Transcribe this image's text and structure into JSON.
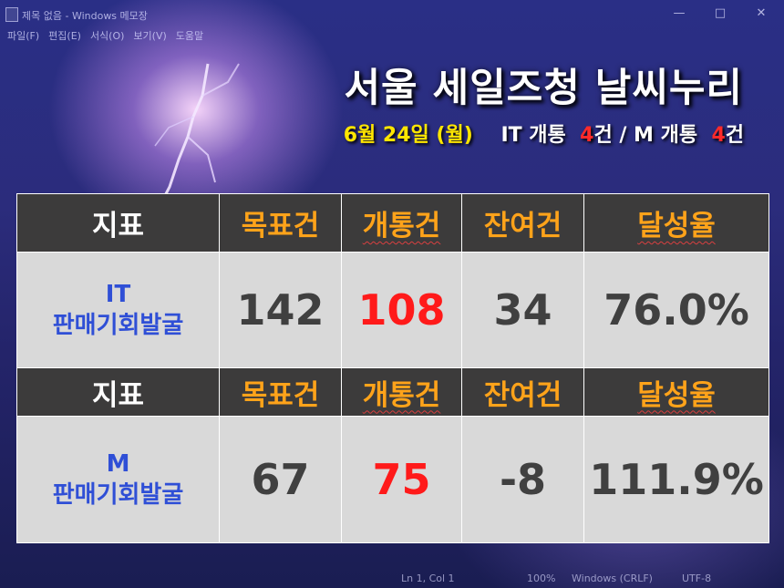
{
  "window": {
    "title": "제목 없음 - Windows 메모장",
    "menu": [
      "파일(F)",
      "편집(E)",
      "서식(O)",
      "보기(V)",
      "도움말"
    ]
  },
  "headline": "서울 세일즈청 날씨누리",
  "subheader": {
    "date": "6월 24일 (월)",
    "it_label": "IT 개통",
    "it_count": "4",
    "separator": "건 / M 개통",
    "m_count": "4",
    "suffix": "건"
  },
  "table": {
    "columns": [
      "지표",
      "목표건",
      "개통건",
      "잔여건",
      "달성율"
    ],
    "rows": [
      {
        "name_line1": "IT",
        "name_line2": "판매기회발굴",
        "target": "142",
        "opened": "108",
        "remaining": "34",
        "rate": "76.0%"
      },
      {
        "name_line1": "M",
        "name_line2": "판매기회발굴",
        "target": "67",
        "opened": "75",
        "remaining": "-8",
        "rate": "111.9%"
      }
    ]
  },
  "statusbar": {
    "position": "Ln 1, Col 1",
    "zoom": "100%",
    "line_ending": "Windows (CRLF)",
    "encoding": "UTF-8"
  },
  "colors": {
    "header_bg": "#3c3b3b",
    "header_accent": "#ffa31a",
    "cell_bg": "#d9d9d9",
    "highlight_red": "#ff1a1a",
    "metric_blue": "#2f4fd6",
    "date_yellow": "#ffe600"
  }
}
